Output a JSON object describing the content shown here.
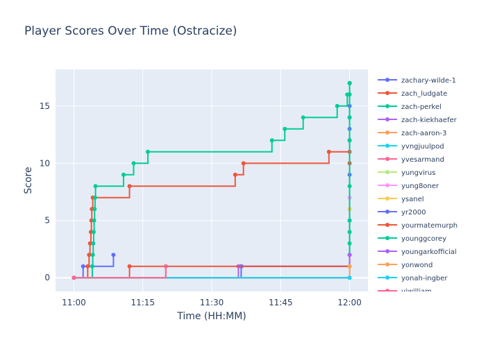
{
  "chart_data": {
    "type": "line",
    "title": "Player Scores Over Time (Ostracize)",
    "xlabel": "Time (HH:MM)",
    "ylabel": "Score",
    "x_ticks": [
      "11:00",
      "11:15",
      "11:30",
      "11:45",
      "12:00"
    ],
    "y_ticks": [
      0,
      5,
      10,
      15
    ],
    "xlim": [
      -4,
      64
    ],
    "ylim": [
      -1.2,
      18.2
    ],
    "grid": true,
    "legend_position": "right",
    "series": [
      {
        "name": "zachary-wilde-1",
        "color": "#636efa",
        "x": [
          0,
          2,
          8.6
        ],
        "y": [
          0,
          1,
          2
        ]
      },
      {
        "name": "zach_ludgate",
        "color": "#EF553B",
        "x": [
          0,
          3,
          3.3,
          3.5,
          3.7,
          3.8,
          3.9,
          4.1,
          12.1,
          35.1,
          36.9,
          55.5,
          60
        ],
        "y": [
          0,
          1,
          2,
          3,
          4,
          5,
          6,
          7,
          8,
          9,
          10,
          11,
          12
        ]
      },
      {
        "name": "zach-perkel",
        "color": "#00cc96",
        "x": [
          0,
          4,
          4.1,
          4.2,
          4.3,
          4.4,
          4.5,
          4.6,
          4.7,
          10.8,
          13.0,
          16.1,
          43.1,
          45.9,
          49.9,
          57.3,
          59.5,
          60,
          60.05
        ],
        "y": [
          0,
          1,
          2,
          3,
          4,
          5,
          6,
          7,
          8,
          9,
          10,
          11,
          12,
          13,
          14,
          15,
          16,
          17,
          17
        ]
      },
      {
        "name": "zach-kiekhaefer",
        "color": "#ab63fa",
        "x": [
          0,
          35.8,
          36.5,
          60
        ],
        "y": [
          0,
          1,
          1,
          1
        ]
      },
      {
        "name": "zach-aaron-3",
        "color": "#FFA15A",
        "x": [
          0,
          60
        ],
        "y": [
          0,
          1
        ]
      },
      {
        "name": "yvngjuulpod",
        "color": "#19d3f3",
        "x": [
          0,
          60
        ],
        "y": [
          0,
          0
        ]
      },
      {
        "name": "yvesarmand",
        "color": "#FF6692",
        "x": [
          0,
          20.0
        ],
        "y": [
          0,
          1
        ]
      },
      {
        "name": "yungvirus",
        "color": "#B6E880",
        "x": [
          0,
          60
        ],
        "y": [
          0,
          1
        ]
      },
      {
        "name": "yung8oner",
        "color": "#FF97FF",
        "x": [
          0,
          60,
          60
        ],
        "y": [
          0,
          1,
          7
        ]
      },
      {
        "name": "ysanel",
        "color": "#FECB52",
        "x": [
          0,
          60,
          60
        ],
        "y": [
          0,
          1,
          6
        ]
      },
      {
        "name": "yr2000",
        "color": "#636efa",
        "x": [
          0,
          36.4,
          60,
          60,
          60,
          60,
          60,
          60,
          60
        ],
        "y": [
          0,
          1,
          2,
          5,
          9,
          12,
          13,
          14,
          15
        ]
      },
      {
        "name": "yourmatemurph",
        "color": "#EF553B",
        "x": [
          0,
          12.1,
          60,
          60
        ],
        "y": [
          0,
          1,
          10,
          11
        ]
      },
      {
        "name": "younggcorey",
        "color": "#00cc96",
        "x": [
          0,
          60,
          60,
          60,
          60,
          60,
          60,
          60,
          60,
          60
        ],
        "y": [
          0,
          3,
          4,
          5,
          8,
          12,
          14,
          16,
          17,
          17
        ]
      },
      {
        "name": "youngarkofficial",
        "color": "#ab63fa",
        "x": [
          0,
          60
        ],
        "y": [
          0,
          2
        ]
      },
      {
        "name": "yonwond",
        "color": "#FFA15A",
        "x": [
          0,
          60
        ],
        "y": [
          0,
          1
        ]
      },
      {
        "name": "yonah-ingber",
        "color": "#19d3f3",
        "x": [
          0,
          60
        ],
        "y": [
          0,
          0
        ]
      },
      {
        "name": "yiwilliam",
        "color": "#FF6692",
        "x": [
          0,
          20.0
        ],
        "y": [
          0,
          1
        ]
      }
    ]
  }
}
